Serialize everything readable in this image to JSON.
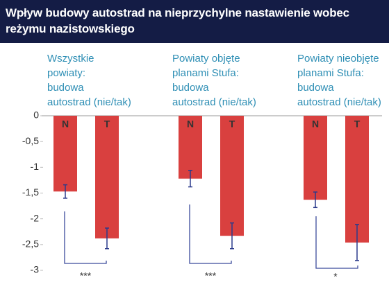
{
  "chart_data": {
    "type": "bar",
    "title": "Wpływ budowy autostrad na nieprzychylne nastawienie wobec reżymu nazistowskiego",
    "categories": [
      "Wszystkie\npowiaty:\nbudowa\nautostrad (nie/tak)",
      "Powiaty objęte\nplanami Stufa:\nbudowa\nautostrad (nie/tak)",
      "Powiaty nieobjęte\nplanami Stufa:\nbudowa\nautostrad (nie/tak)"
    ],
    "series": [
      {
        "name": "N",
        "color": "#d9403f",
        "values": [
          -1.47,
          -1.22,
          -1.63
        ],
        "errors": [
          0.13,
          0.16,
          0.15
        ]
      },
      {
        "name": "T",
        "color": "#d9403f",
        "values": [
          -2.38,
          -2.33,
          -2.46
        ],
        "errors": [
          0.2,
          0.25,
          0.35
        ]
      }
    ],
    "annotations": [
      "***",
      "***",
      "*"
    ],
    "ylim": [
      -3,
      0
    ],
    "yticks": [
      0,
      {
        "value": -0.5,
        "label": "-0,5"
      },
      -1,
      {
        "value": -1.5,
        "label": "-1,5"
      },
      -2,
      {
        "value": -2.5,
        "label": "-2,5"
      },
      -3
    ],
    "grid": false
  }
}
